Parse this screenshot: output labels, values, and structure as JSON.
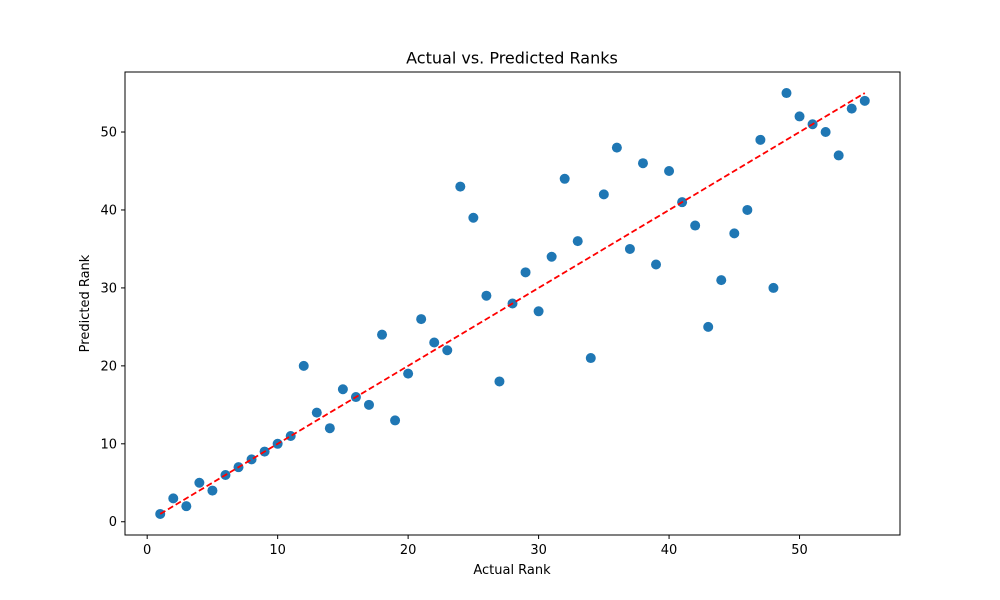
{
  "chart_data": {
    "type": "scatter",
    "title": "Actual vs. Predicted Ranks",
    "xlabel": "Actual Rank",
    "ylabel": "Predicted Rank",
    "xlim": [
      -1.7,
      57.7
    ],
    "ylim": [
      -1.7,
      57.7
    ],
    "xticks": [
      0,
      10,
      20,
      30,
      40,
      50
    ],
    "yticks": [
      0,
      10,
      20,
      30,
      40,
      50
    ],
    "grid": false,
    "series": [
      {
        "kind": "scatter",
        "color": "#1f77b4",
        "points": [
          [
            1,
            1
          ],
          [
            2,
            3
          ],
          [
            3,
            2
          ],
          [
            4,
            5
          ],
          [
            5,
            4
          ],
          [
            6,
            6
          ],
          [
            7,
            7
          ],
          [
            8,
            8
          ],
          [
            9,
            9
          ],
          [
            10,
            10
          ],
          [
            11,
            11
          ],
          [
            12,
            20
          ],
          [
            13,
            14
          ],
          [
            14,
            12
          ],
          [
            15,
            17
          ],
          [
            16,
            16
          ],
          [
            17,
            15
          ],
          [
            18,
            24
          ],
          [
            19,
            13
          ],
          [
            20,
            19
          ],
          [
            21,
            26
          ],
          [
            22,
            23
          ],
          [
            23,
            22
          ],
          [
            24,
            43
          ],
          [
            25,
            39
          ],
          [
            26,
            29
          ],
          [
            27,
            18
          ],
          [
            28,
            28
          ],
          [
            29,
            32
          ],
          [
            30,
            27
          ],
          [
            31,
            34
          ],
          [
            32,
            44
          ],
          [
            33,
            36
          ],
          [
            34,
            21
          ],
          [
            35,
            42
          ],
          [
            36,
            48
          ],
          [
            37,
            35
          ],
          [
            38,
            46
          ],
          [
            39,
            33
          ],
          [
            40,
            45
          ],
          [
            41,
            41
          ],
          [
            42,
            38
          ],
          [
            43,
            25
          ],
          [
            44,
            31
          ],
          [
            45,
            37
          ],
          [
            46,
            40
          ],
          [
            47,
            49
          ],
          [
            48,
            30
          ],
          [
            49,
            55
          ],
          [
            50,
            52
          ],
          [
            51,
            51
          ],
          [
            52,
            50
          ],
          [
            53,
            47
          ],
          [
            54,
            53
          ],
          [
            55,
            54
          ]
        ]
      },
      {
        "kind": "line",
        "style": "dashed",
        "color": "#ff0000",
        "points": [
          [
            1,
            1
          ],
          [
            55,
            55
          ]
        ]
      }
    ]
  }
}
